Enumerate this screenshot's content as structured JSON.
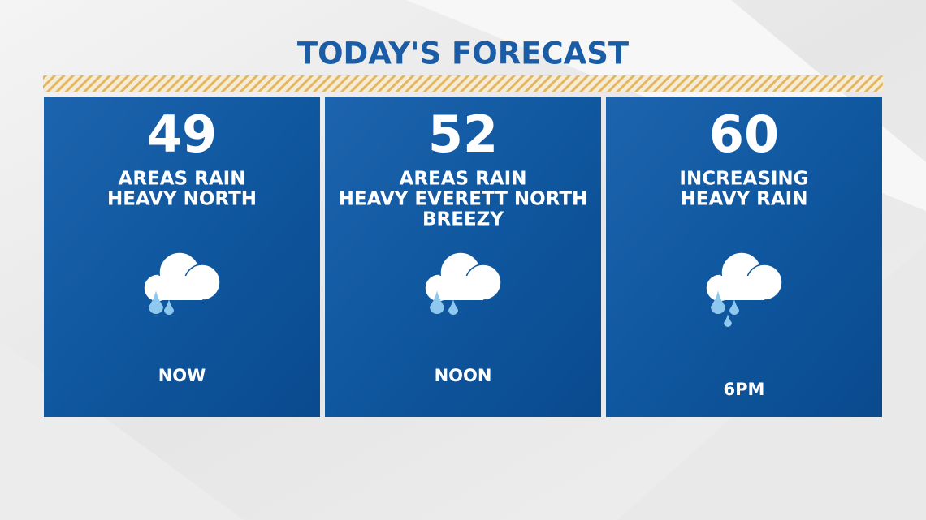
{
  "title": "TODAY'S FORECAST",
  "panels": [
    {
      "temperature": 49,
      "conditions": [
        "AREAS RAIN",
        "HEAVY NORTH"
      ],
      "time": "NOW"
    },
    {
      "temperature": 52,
      "conditions": [
        "AREAS RAIN",
        "HEAVY EVERETT NORTH",
        "BREEZY"
      ],
      "time": "NOON"
    },
    {
      "temperature": 60,
      "conditions": [
        "INCREASING",
        "HEAVY RAIN"
      ],
      "time": "6PM"
    }
  ]
}
